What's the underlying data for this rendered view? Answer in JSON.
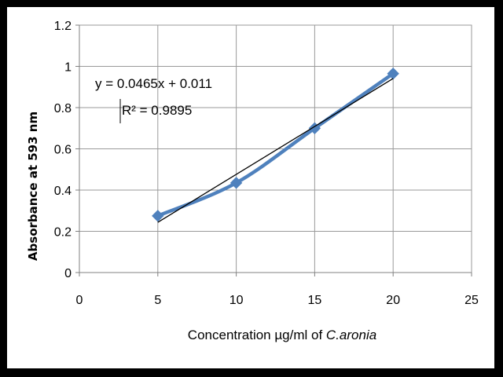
{
  "chart_data": {
    "type": "scatter",
    "xlabel": "Concentration µg/ml of",
    "xlabel_italic": "C.aronia",
    "ylabel": "Absorbance at 593 nm",
    "xlim": [
      0,
      25
    ],
    "ylim": [
      0,
      1.2
    ],
    "x_ticks": [
      "0",
      "5",
      "10",
      "15",
      "20",
      "25"
    ],
    "y_ticks": [
      "0",
      "0.2",
      "0.4",
      "0.6",
      "0.8",
      "1",
      "1.2"
    ],
    "grid": true,
    "legend": "none",
    "series": [
      {
        "x": [
          5,
          10,
          15,
          20
        ],
        "y": [
          0.275,
          0.435,
          0.7,
          0.965
        ],
        "color": "#4f81bd",
        "marker": "diamond",
        "line": "smooth"
      }
    ],
    "trendline": {
      "type": "linear",
      "slope": 0.0465,
      "intercept": 0.011,
      "x_range": [
        5,
        20
      ],
      "color": "#000000",
      "equation": "y = 0.0465x + 0.011",
      "r_squared": "R² = 0.9895"
    }
  }
}
